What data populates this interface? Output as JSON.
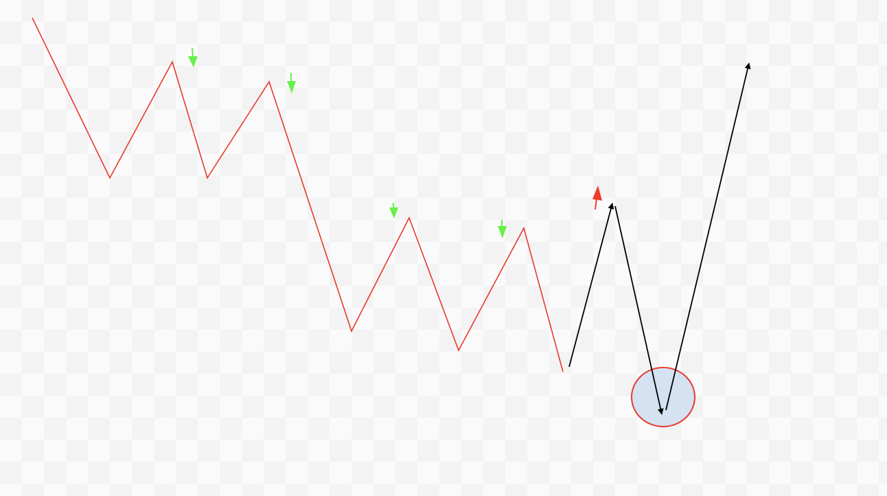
{
  "colors": {
    "zigzag": "#e8392c",
    "down_marker": "#66f04a",
    "up_marker": "#f03a2a",
    "projection": "#000000",
    "circle_fill": "#d4e2f2",
    "circle_stroke": "#e8392c"
  },
  "down_marker_count": 4,
  "up_marker_count": 1,
  "projection_segment_count": 3
}
